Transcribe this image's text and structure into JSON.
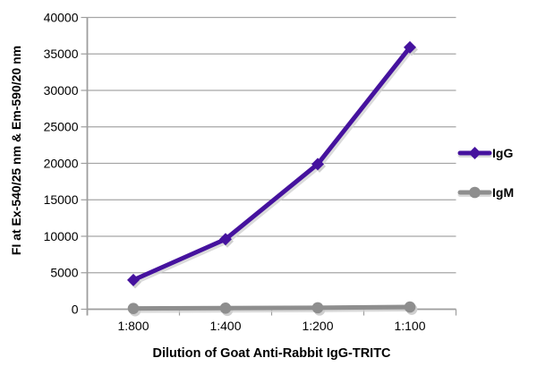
{
  "chart_data": {
    "type": "line",
    "title": "",
    "categories": [
      "1:800",
      "1:400",
      "1:200",
      "1:100"
    ],
    "series": [
      {
        "name": "IgG",
        "values": [
          4000,
          9600,
          19900,
          35900
        ],
        "color": "#45129e",
        "marker": "diamond"
      },
      {
        "name": "IgM",
        "values": [
          100,
          150,
          200,
          300
        ],
        "color": "#8e8e8e",
        "marker": "circle"
      }
    ],
    "xlabel": "Dilution of Goat Anti-Rabbit IgG-TRITC",
    "ylabel": "FI at Ex-540/25 nm & Em-590/20 nm",
    "ylim": [
      0,
      40000
    ],
    "ytick_step": 5000,
    "grid": "horizontal",
    "legend_position": "right",
    "colors": {
      "grid": "#a6a6a6",
      "axis": "#9e9e9e",
      "text": "#000000",
      "background": "#ffffff",
      "shadow": "#cfcfcf"
    }
  }
}
